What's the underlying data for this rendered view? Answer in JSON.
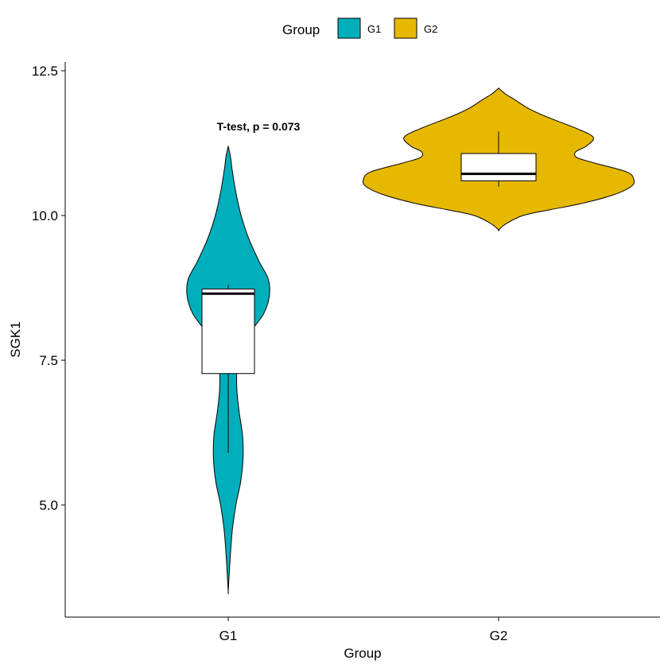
{
  "chart_data": {
    "type": "violin",
    "xlabel": "Group",
    "ylabel": "SGK1",
    "categories": [
      "G1",
      "G2"
    ],
    "ylim": [
      3.3,
      12.7
    ],
    "yticks": [
      5.0,
      7.5,
      10.0,
      12.5
    ],
    "ytick_labels": [
      "5.0",
      "7.5",
      "10.0",
      "12.5"
    ],
    "grid": false,
    "legend": {
      "title": "Group",
      "position": "top",
      "entries": [
        {
          "label": "G1",
          "color": "#00AFBB"
        },
        {
          "label": "G2",
          "color": "#E7B800"
        }
      ]
    },
    "annotation": "T-test, p = 0.073",
    "series": [
      {
        "category": "G1",
        "color": "#00AFBB",
        "violin_range": [
          3.5,
          11.2
        ],
        "density": [
          [
            3.5,
            0.0
          ],
          [
            3.8,
            0.02
          ],
          [
            4.2,
            0.05
          ],
          [
            4.6,
            0.09
          ],
          [
            5.0,
            0.16
          ],
          [
            5.4,
            0.26
          ],
          [
            5.8,
            0.31
          ],
          [
            6.2,
            0.3
          ],
          [
            6.6,
            0.23
          ],
          [
            7.0,
            0.18
          ],
          [
            7.4,
            0.19
          ],
          [
            7.7,
            0.3
          ],
          [
            8.0,
            0.48
          ],
          [
            8.3,
            0.74
          ],
          [
            8.6,
            0.86
          ],
          [
            8.9,
            0.84
          ],
          [
            9.2,
            0.65
          ],
          [
            9.6,
            0.43
          ],
          [
            10.0,
            0.27
          ],
          [
            10.4,
            0.16
          ],
          [
            10.8,
            0.08
          ],
          [
            11.0,
            0.05
          ],
          [
            11.2,
            0.0
          ]
        ],
        "box": {
          "whisker_low": 5.9,
          "q1": 7.27,
          "median": 8.65,
          "q3": 8.73,
          "whisker_high": 8.8
        }
      },
      {
        "category": "G2",
        "color": "#E7B800",
        "violin_range": [
          9.75,
          12.2
        ],
        "density": [
          [
            9.75,
            0.0
          ],
          [
            9.85,
            0.05
          ],
          [
            10.0,
            0.18
          ],
          [
            10.1,
            0.38
          ],
          [
            10.2,
            0.6
          ],
          [
            10.35,
            0.84
          ],
          [
            10.5,
            0.98
          ],
          [
            10.62,
            1.0
          ],
          [
            10.75,
            0.95
          ],
          [
            10.9,
            0.72
          ],
          [
            11.0,
            0.58
          ],
          [
            11.1,
            0.57
          ],
          [
            11.2,
            0.65
          ],
          [
            11.35,
            0.7
          ],
          [
            11.5,
            0.58
          ],
          [
            11.7,
            0.36
          ],
          [
            11.85,
            0.22
          ],
          [
            12.0,
            0.12
          ],
          [
            12.1,
            0.05
          ],
          [
            12.2,
            0.0
          ]
        ],
        "box": {
          "whisker_low": 10.5,
          "q1": 10.6,
          "median": 10.72,
          "q3": 11.07,
          "whisker_high": 11.45
        }
      }
    ]
  }
}
